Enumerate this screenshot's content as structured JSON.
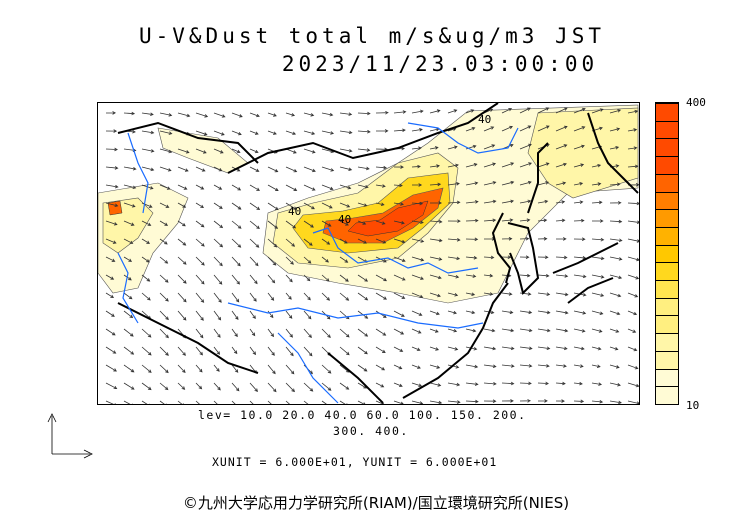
{
  "title": {
    "line1": "U-V&Dust total m/s&ug/m3 JST",
    "line2": "2023/11/23.03:00:00"
  },
  "colorbar": {
    "max_label": "400",
    "min_label": "10",
    "colors": [
      "#fffbd5",
      "#fff6a8",
      "#ffef80",
      "#ffe550",
      "#ffd81e",
      "#ffc800",
      "#ffb200",
      "#ff9a00",
      "#ff7e00",
      "#ff6400",
      "#ff4a00"
    ]
  },
  "levels": {
    "line1": "lev= 10.0 20.0 40.0 60.0 100. 150. 200.",
    "line2": "300. 400."
  },
  "units": {
    "text": "XUNIT = 6.000E+01, YUNIT = 6.000E+01"
  },
  "contour_labels": [
    "40",
    "40",
    "40"
  ],
  "copyright": "©九州大学応用力学研究所(RIAM)/国立環境研究所(NIES)"
}
